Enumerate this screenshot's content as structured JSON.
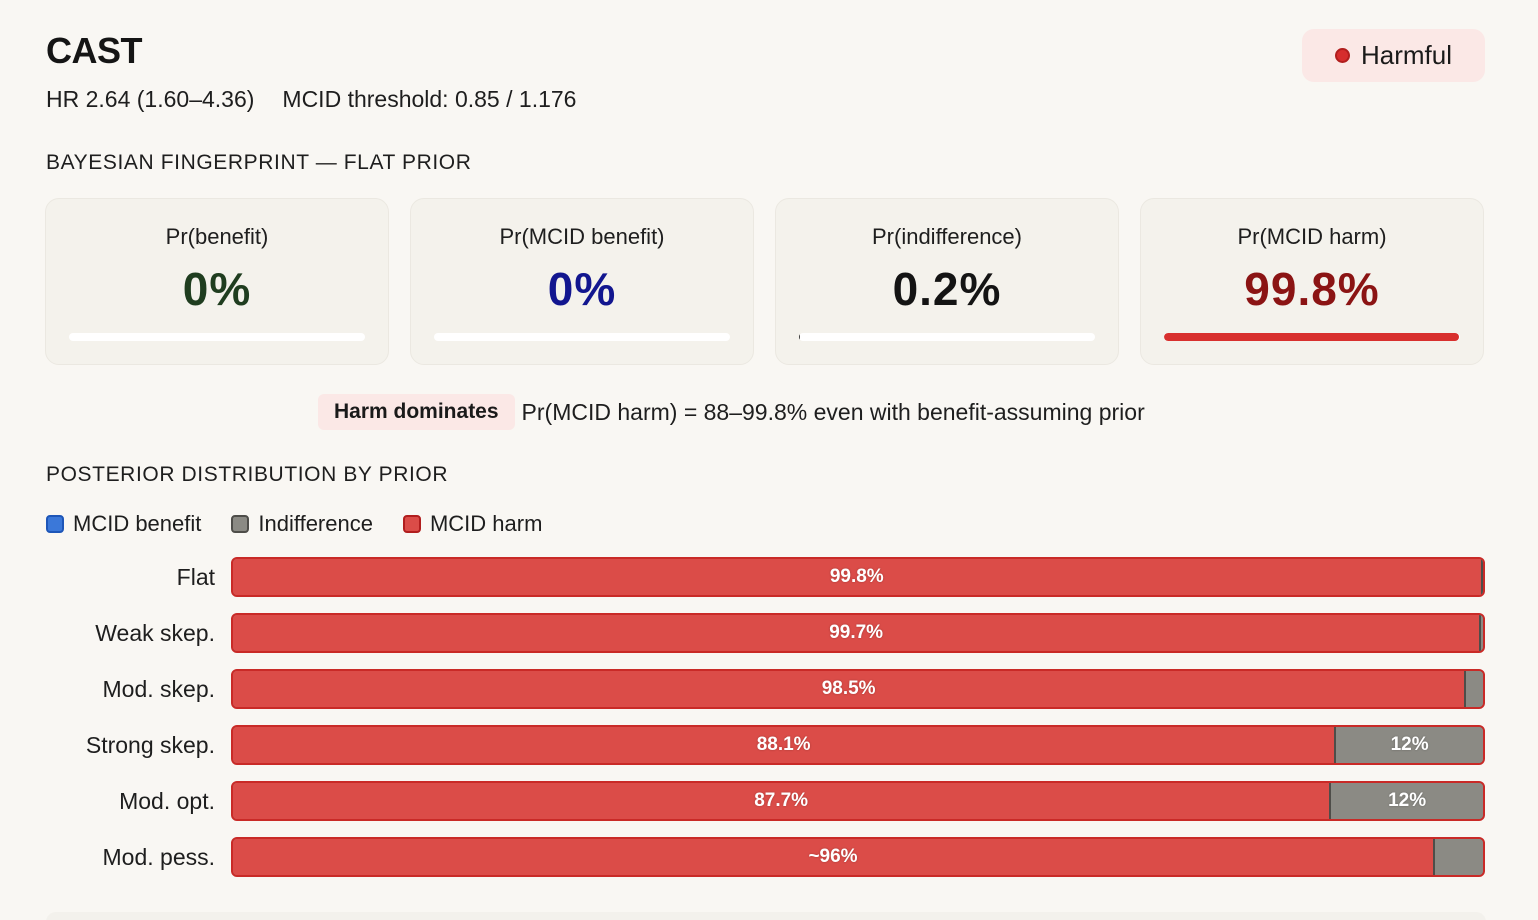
{
  "header": {
    "title": "CAST",
    "hr": "HR 2.64 (1.60–4.36)",
    "mcid": "MCID threshold: 0.85 / 1.176",
    "badge_label": "Harmful"
  },
  "fingerprint": {
    "section_title": "BAYESIAN FINGERPRINT — FLAT PRIOR",
    "cards": [
      {
        "label": "Pr(benefit)",
        "value": "0%",
        "fraction": 0.0,
        "color": "#1f3d1f"
      },
      {
        "label": "Pr(MCID benefit)",
        "value": "0%",
        "fraction": 0.0,
        "color": "#12168f"
      },
      {
        "label": "Pr(indifference)",
        "value": "0.2%",
        "fraction": 0.002,
        "color": "#141414"
      },
      {
        "label": "Pr(MCID harm)",
        "value": "99.8%",
        "fraction": 0.998,
        "color": "#8b1414"
      }
    ]
  },
  "callout": {
    "pill": "Harm dominates",
    "text": "Pr(MCID harm) = 88–99.8% even with benefit-assuming prior"
  },
  "posterior": {
    "section_title": "POSTERIOR DISTRIBUTION BY PRIOR",
    "legend": [
      {
        "label": "MCID benefit",
        "color": "#3b78d9",
        "border": "#1e56b8"
      },
      {
        "label": "Indifference",
        "color": "#8b8a84",
        "border": "#4e4d49"
      },
      {
        "label": "MCID harm",
        "color": "#db4c48",
        "border": "#b11e1e"
      }
    ],
    "rows": [
      {
        "label": "Flat",
        "harm": 99.8,
        "harm_label": "99.8%",
        "indifference": 0.2,
        "ind_label": ""
      },
      {
        "label": "Weak skep.",
        "harm": 99.7,
        "harm_label": "99.7%",
        "indifference": 0.3,
        "ind_label": ""
      },
      {
        "label": "Mod. skep.",
        "harm": 98.5,
        "harm_label": "98.5%",
        "indifference": 1.5,
        "ind_label": ""
      },
      {
        "label": "Strong skep.",
        "harm": 88.1,
        "harm_label": "88.1%",
        "indifference": 11.9,
        "ind_label": "12%"
      },
      {
        "label": "Mod. opt.",
        "harm": 87.7,
        "harm_label": "87.7%",
        "indifference": 12.3,
        "ind_label": "12%"
      },
      {
        "label": "Mod. pess.",
        "harm": 96,
        "harm_label": "~96%",
        "indifference": 4,
        "ind_label": ""
      }
    ]
  }
}
